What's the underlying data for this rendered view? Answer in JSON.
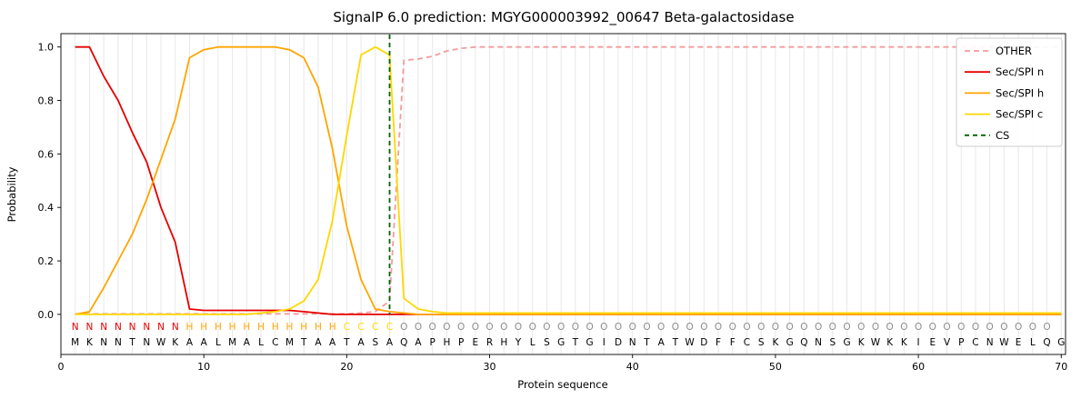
{
  "chart_data": {
    "type": "line",
    "title": "SignalP 6.0 prediction: MGYG000003992_00647 Beta-galactosidase",
    "xlabel": "Protein sequence",
    "ylabel": "Probability",
    "xlim": [
      0,
      70.3
    ],
    "ylim": [
      -0.15,
      1.05
    ],
    "x_ticks": [
      0,
      10,
      20,
      30,
      40,
      50,
      60,
      70
    ],
    "y_ticks": [
      0.0,
      0.2,
      0.4,
      0.6,
      0.8,
      1.0
    ],
    "grid": {
      "vertical_per_position": true
    },
    "legend_position": "upper right",
    "colors": {
      "grid": "#e8e8e8",
      "frame": "#000000",
      "legend_border": "#cccccc"
    },
    "series": [
      {
        "id": "other",
        "name": "OTHER",
        "color": "#f29c9c",
        "dash": "6,4",
        "values": [
          0.002,
          0.002,
          0.002,
          0.002,
          0.002,
          0.002,
          0.002,
          0.002,
          0.002,
          0.002,
          0.002,
          0.002,
          0.002,
          0.002,
          0.002,
          0.002,
          0.002,
          0.002,
          0.002,
          0.002,
          0.005,
          0.01,
          0.05,
          0.95,
          0.955,
          0.965,
          0.985,
          0.995,
          1.0,
          1.0,
          1.0,
          1.0,
          1.0,
          1.0,
          1.0,
          1.0,
          1.0,
          1.0,
          1.0,
          1.0,
          1.0,
          1.0,
          1.0,
          1.0,
          1.0,
          1.0,
          1.0,
          1.0,
          1.0,
          1.0,
          1.0,
          1.0,
          1.0,
          1.0,
          1.0,
          1.0,
          1.0,
          1.0,
          1.0,
          1.0,
          1.0,
          1.0,
          1.0,
          1.0,
          1.0,
          1.0,
          1.0,
          1.0,
          1.0,
          1.0
        ]
      },
      {
        "id": "n",
        "name": "Sec/SPI n",
        "color": "#e60000",
        "dash": null,
        "values": [
          1.0,
          1.0,
          0.89,
          0.8,
          0.68,
          0.57,
          0.4,
          0.27,
          0.02,
          0.015,
          0.015,
          0.015,
          0.015,
          0.015,
          0.015,
          0.015,
          0.01,
          0.005,
          0,
          0,
          0,
          0,
          0,
          0,
          0,
          0,
          0,
          0,
          0,
          0,
          0,
          0,
          0,
          0,
          0,
          0,
          0,
          0,
          0,
          0,
          0,
          0,
          0,
          0,
          0,
          0,
          0,
          0,
          0,
          0,
          0,
          0,
          0,
          0,
          0,
          0,
          0,
          0,
          0,
          0,
          0,
          0,
          0,
          0,
          0,
          0,
          0,
          0,
          0,
          0
        ]
      },
      {
        "id": "h",
        "name": "Sec/SPI h",
        "color": "#ffa500",
        "dash": null,
        "values": [
          0,
          0.01,
          0.1,
          0.2,
          0.3,
          0.43,
          0.58,
          0.73,
          0.96,
          0.99,
          1.0,
          1.0,
          1.0,
          1.0,
          1.0,
          0.99,
          0.96,
          0.85,
          0.62,
          0.33,
          0.13,
          0.02,
          0.01,
          0.005,
          0,
          0,
          0,
          0,
          0,
          0,
          0,
          0,
          0,
          0,
          0,
          0,
          0,
          0,
          0,
          0,
          0,
          0,
          0,
          0,
          0,
          0,
          0,
          0,
          0,
          0,
          0,
          0,
          0,
          0,
          0,
          0,
          0,
          0,
          0,
          0,
          0,
          0,
          0,
          0,
          0,
          0,
          0,
          0,
          0,
          0
        ]
      },
      {
        "id": "c",
        "name": "Sec/SPI c",
        "color": "#ffd700",
        "dash": null,
        "values": [
          0,
          0,
          0,
          0,
          0,
          0,
          0,
          0,
          0,
          0,
          0,
          0,
          0,
          0.005,
          0.01,
          0.02,
          0.05,
          0.13,
          0.35,
          0.67,
          0.97,
          1.0,
          0.97,
          0.06,
          0.02,
          0.01,
          0.005,
          0.005,
          0.005,
          0.005,
          0.005,
          0.005,
          0.005,
          0.005,
          0.005,
          0.005,
          0.005,
          0.005,
          0.005,
          0.005,
          0.005,
          0.005,
          0.005,
          0.005,
          0.005,
          0.005,
          0.005,
          0.005,
          0.005,
          0.005,
          0.005,
          0.005,
          0.005,
          0.005,
          0.005,
          0.005,
          0.005,
          0.005,
          0.005,
          0.005,
          0.005,
          0.005,
          0.005,
          0.005,
          0.005,
          0.005,
          0.005,
          0.005,
          0.005,
          0.005
        ]
      }
    ],
    "cs_line": {
      "id": "cs",
      "name": "CS",
      "x": 23,
      "color": "#006400",
      "dash": "5,4"
    },
    "sequence": "MKNNTNWKAALMALCMTAATASAQAPHPERHYLSGTGIDNTATWDFFCSKGQNSGKWKKIEVPCNWELQG",
    "regions": "NNNNNNNNHHHHHHHHHHHCCCCOOOOOOOOOOOOOOOOOOOOOOOOOOOOOOOOOOOOOOOOOOOOOO",
    "region_colors": {
      "N": "#e60000",
      "H": "#ffa500",
      "C": "#ffd700",
      "O": "#8c8c8c"
    }
  }
}
